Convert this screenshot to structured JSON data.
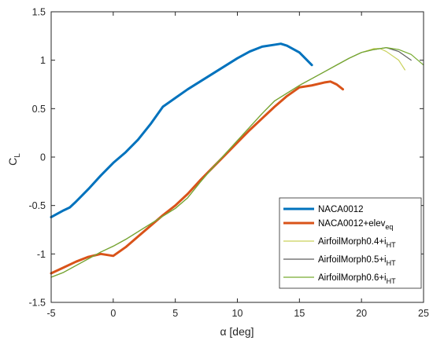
{
  "chart_data": {
    "type": "line",
    "xlabel": "α [deg]",
    "ylabel": {
      "main": "C",
      "sub": "L"
    },
    "xlim": [
      -5,
      25
    ],
    "ylim": [
      -1.5,
      1.5
    ],
    "xticks": [
      -5,
      0,
      5,
      10,
      15,
      20,
      25
    ],
    "yticks": [
      -1.5,
      -1,
      -0.5,
      0,
      0.5,
      1,
      1.5
    ],
    "grid": false,
    "legend_position": "bottom-right",
    "series": [
      {
        "name": "NACA0012",
        "legend_main": "NACA0012",
        "legend_sub": "",
        "color": "#0072BD",
        "width": 3,
        "points": [
          [
            -5,
            -0.62
          ],
          [
            -4,
            -0.55
          ],
          [
            -3.5,
            -0.52
          ],
          [
            -3,
            -0.46
          ],
          [
            -2,
            -0.33
          ],
          [
            -1,
            -0.19
          ],
          [
            0,
            -0.06
          ],
          [
            1,
            0.05
          ],
          [
            2,
            0.18
          ],
          [
            3,
            0.34
          ],
          [
            4,
            0.52
          ],
          [
            5,
            0.61
          ],
          [
            6,
            0.7
          ],
          [
            7,
            0.78
          ],
          [
            8,
            0.86
          ],
          [
            9,
            0.94
          ],
          [
            10,
            1.02
          ],
          [
            11,
            1.09
          ],
          [
            12,
            1.14
          ],
          [
            13,
            1.16
          ],
          [
            13.5,
            1.17
          ],
          [
            14,
            1.15
          ],
          [
            15,
            1.08
          ],
          [
            16,
            0.95
          ]
        ]
      },
      {
        "name": "NACA0012+elev_eq",
        "legend_main": "NACA0012+elev",
        "legend_sub": "eq",
        "color": "#D95319",
        "width": 3,
        "points": [
          [
            -5,
            -1.2
          ],
          [
            -4,
            -1.14
          ],
          [
            -3,
            -1.08
          ],
          [
            -2,
            -1.03
          ],
          [
            -1,
            -1.0
          ],
          [
            0,
            -1.02
          ],
          [
            1,
            -0.93
          ],
          [
            2,
            -0.82
          ],
          [
            3,
            -0.71
          ],
          [
            4,
            -0.6
          ],
          [
            5,
            -0.5
          ],
          [
            6,
            -0.38
          ],
          [
            7,
            -0.24
          ],
          [
            8,
            -0.11
          ],
          [
            9,
            0.02
          ],
          [
            10,
            0.15
          ],
          [
            11,
            0.28
          ],
          [
            12,
            0.4
          ],
          [
            13,
            0.52
          ],
          [
            14,
            0.63
          ],
          [
            15,
            0.72
          ],
          [
            16,
            0.74
          ],
          [
            17,
            0.77
          ],
          [
            17.5,
            0.78
          ],
          [
            18,
            0.75
          ],
          [
            18.5,
            0.7
          ]
        ]
      },
      {
        "name": "AirfoilMorph0.4+i_HT",
        "legend_main": "AirfoilMorph0.4+i",
        "legend_sub": "HT",
        "color": "#C9D15A",
        "width": 1.2,
        "points": [
          [
            -5,
            -1.24
          ],
          [
            -4,
            -1.19
          ],
          [
            -3,
            -1.12
          ],
          [
            -2,
            -1.05
          ],
          [
            -1,
            -0.98
          ],
          [
            0,
            -0.92
          ],
          [
            1,
            -0.85
          ],
          [
            2,
            -0.77
          ],
          [
            3,
            -0.69
          ],
          [
            4,
            -0.61
          ],
          [
            5,
            -0.53
          ],
          [
            6,
            -0.42
          ],
          [
            7,
            -0.26
          ],
          [
            8,
            -0.11
          ],
          [
            9,
            0.03
          ],
          [
            10,
            0.17
          ],
          [
            11,
            0.31
          ],
          [
            12,
            0.45
          ],
          [
            13,
            0.58
          ],
          [
            14,
            0.66
          ],
          [
            15,
            0.74
          ],
          [
            16,
            0.81
          ],
          [
            17,
            0.88
          ],
          [
            18,
            0.95
          ],
          [
            19,
            1.02
          ],
          [
            20,
            1.08
          ],
          [
            21,
            1.12
          ],
          [
            21.5,
            1.12
          ],
          [
            22,
            1.09
          ],
          [
            23,
            1.0
          ],
          [
            23.5,
            0.9
          ]
        ]
      },
      {
        "name": "AirfoilMorph0.5+i_HT",
        "legend_main": "AirfoilMorph0.5+i",
        "legend_sub": "HT",
        "color": "#5E5E5E",
        "width": 1.2,
        "points": [
          [
            -5,
            -1.24
          ],
          [
            -4,
            -1.19
          ],
          [
            -3,
            -1.12
          ],
          [
            -2,
            -1.05
          ],
          [
            -1,
            -0.98
          ],
          [
            0,
            -0.92
          ],
          [
            1,
            -0.85
          ],
          [
            2,
            -0.77
          ],
          [
            3,
            -0.69
          ],
          [
            4,
            -0.61
          ],
          [
            5,
            -0.53
          ],
          [
            6,
            -0.42
          ],
          [
            7,
            -0.26
          ],
          [
            8,
            -0.11
          ],
          [
            9,
            0.03
          ],
          [
            10,
            0.17
          ],
          [
            11,
            0.31
          ],
          [
            12,
            0.45
          ],
          [
            13,
            0.58
          ],
          [
            14,
            0.66
          ],
          [
            15,
            0.74
          ],
          [
            16,
            0.81
          ],
          [
            17,
            0.88
          ],
          [
            18,
            0.95
          ],
          [
            19,
            1.02
          ],
          [
            20,
            1.08
          ],
          [
            21,
            1.11
          ],
          [
            22,
            1.13
          ],
          [
            23,
            1.09
          ],
          [
            24,
            1.0
          ]
        ]
      },
      {
        "name": "AirfoilMorph0.6+i_HT",
        "legend_main": "AirfoilMorph0.6+i",
        "legend_sub": "HT",
        "color": "#77AC30",
        "width": 1.2,
        "points": [
          [
            -5,
            -1.24
          ],
          [
            -4,
            -1.19
          ],
          [
            -3,
            -1.12
          ],
          [
            -2,
            -1.05
          ],
          [
            -1,
            -0.98
          ],
          [
            0,
            -0.92
          ],
          [
            1,
            -0.85
          ],
          [
            2,
            -0.77
          ],
          [
            3,
            -0.69
          ],
          [
            4,
            -0.61
          ],
          [
            5,
            -0.53
          ],
          [
            6,
            -0.42
          ],
          [
            7,
            -0.26
          ],
          [
            8,
            -0.11
          ],
          [
            9,
            0.03
          ],
          [
            10,
            0.17
          ],
          [
            11,
            0.31
          ],
          [
            12,
            0.45
          ],
          [
            13,
            0.58
          ],
          [
            14,
            0.66
          ],
          [
            15,
            0.74
          ],
          [
            16,
            0.81
          ],
          [
            17,
            0.88
          ],
          [
            18,
            0.95
          ],
          [
            19,
            1.02
          ],
          [
            20,
            1.08
          ],
          [
            21,
            1.11
          ],
          [
            22,
            1.13
          ],
          [
            23,
            1.11
          ],
          [
            24,
            1.06
          ],
          [
            25,
            0.95
          ]
        ]
      }
    ]
  }
}
